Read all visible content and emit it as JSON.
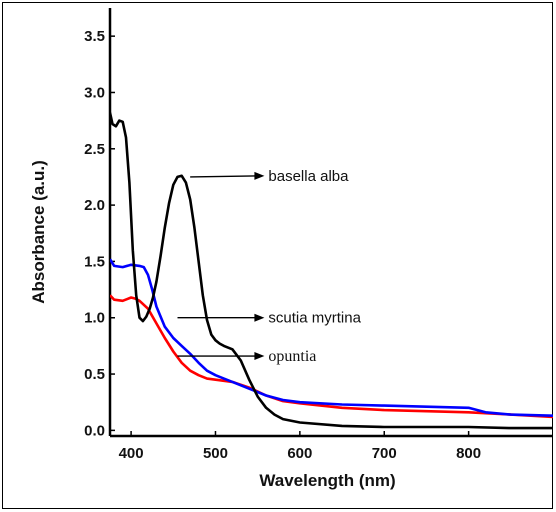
{
  "chart_data": {
    "type": "line",
    "xlabel": "Wavelength (nm)",
    "ylabel": "Absorbance (a.u.)",
    "xlim": [
      375,
      900
    ],
    "ylim": [
      -0.05,
      3.75
    ],
    "xticks": [
      400,
      500,
      600,
      700,
      800
    ],
    "yticks": [
      0.0,
      0.5,
      1.0,
      1.5,
      2.0,
      2.5,
      3.0,
      3.5
    ],
    "xtick_labels": [
      "400",
      "500",
      "600",
      "700",
      "800"
    ],
    "ytick_labels": [
      "0.0",
      "0.5",
      "1.0",
      "1.5",
      "2.0",
      "2.5",
      "3.0",
      "3.5"
    ],
    "grid": false,
    "series": [
      {
        "name": "basella alba",
        "color": "#000000",
        "x": [
          375,
          378,
          382,
          386,
          390,
          394,
          398,
          402,
          406,
          410,
          414,
          418,
          422,
          426,
          430,
          435,
          440,
          445,
          450,
          455,
          460,
          465,
          470,
          475,
          480,
          485,
          490,
          495,
          500,
          505,
          510,
          520,
          530,
          540,
          550,
          560,
          570,
          580,
          600,
          650,
          700,
          750,
          800,
          850,
          900
        ],
        "y": [
          2.82,
          2.72,
          2.7,
          2.75,
          2.74,
          2.6,
          2.2,
          1.6,
          1.2,
          1.0,
          0.97,
          1.01,
          1.08,
          1.18,
          1.32,
          1.55,
          1.8,
          2.02,
          2.18,
          2.25,
          2.26,
          2.2,
          2.05,
          1.8,
          1.5,
          1.2,
          0.98,
          0.85,
          0.8,
          0.77,
          0.75,
          0.72,
          0.62,
          0.45,
          0.3,
          0.2,
          0.14,
          0.1,
          0.07,
          0.04,
          0.03,
          0.03,
          0.03,
          0.02,
          0.02
        ]
      },
      {
        "name": "scutia myrtina",
        "color": "#0000ff",
        "x": [
          375,
          380,
          390,
          400,
          410,
          415,
          420,
          425,
          430,
          440,
          450,
          460,
          470,
          480,
          490,
          500,
          510,
          520,
          540,
          560,
          580,
          600,
          650,
          700,
          750,
          800,
          820,
          850,
          900
        ],
        "y": [
          1.52,
          1.46,
          1.45,
          1.47,
          1.46,
          1.45,
          1.38,
          1.25,
          1.1,
          0.92,
          0.82,
          0.75,
          0.68,
          0.6,
          0.53,
          0.49,
          0.46,
          0.43,
          0.37,
          0.31,
          0.27,
          0.25,
          0.23,
          0.22,
          0.21,
          0.2,
          0.16,
          0.14,
          0.13
        ]
      },
      {
        "name": "opuntia",
        "color": "#ff0000",
        "x": [
          375,
          380,
          390,
          400,
          405,
          410,
          420,
          430,
          440,
          450,
          460,
          470,
          480,
          490,
          500,
          510,
          520,
          540,
          560,
          580,
          600,
          650,
          700,
          750,
          800,
          850,
          900
        ],
        "y": [
          1.2,
          1.16,
          1.15,
          1.18,
          1.17,
          1.15,
          1.08,
          0.95,
          0.82,
          0.7,
          0.6,
          0.53,
          0.49,
          0.46,
          0.45,
          0.44,
          0.43,
          0.38,
          0.31,
          0.26,
          0.24,
          0.2,
          0.18,
          0.17,
          0.16,
          0.14,
          0.12
        ]
      }
    ],
    "annotations": [
      {
        "text": "basella alba",
        "x": 470,
        "y": 2.25,
        "text_x": 558,
        "text_y": 2.26,
        "font": "sans"
      },
      {
        "text": "scutia myrtina",
        "x": 455,
        "y": 1.0,
        "text_x": 558,
        "text_y": 1.0,
        "font": "sans"
      },
      {
        "text": "opuntia",
        "x": 455,
        "y": 0.66,
        "text_x": 558,
        "text_y": 0.66,
        "font": "serif"
      }
    ]
  }
}
